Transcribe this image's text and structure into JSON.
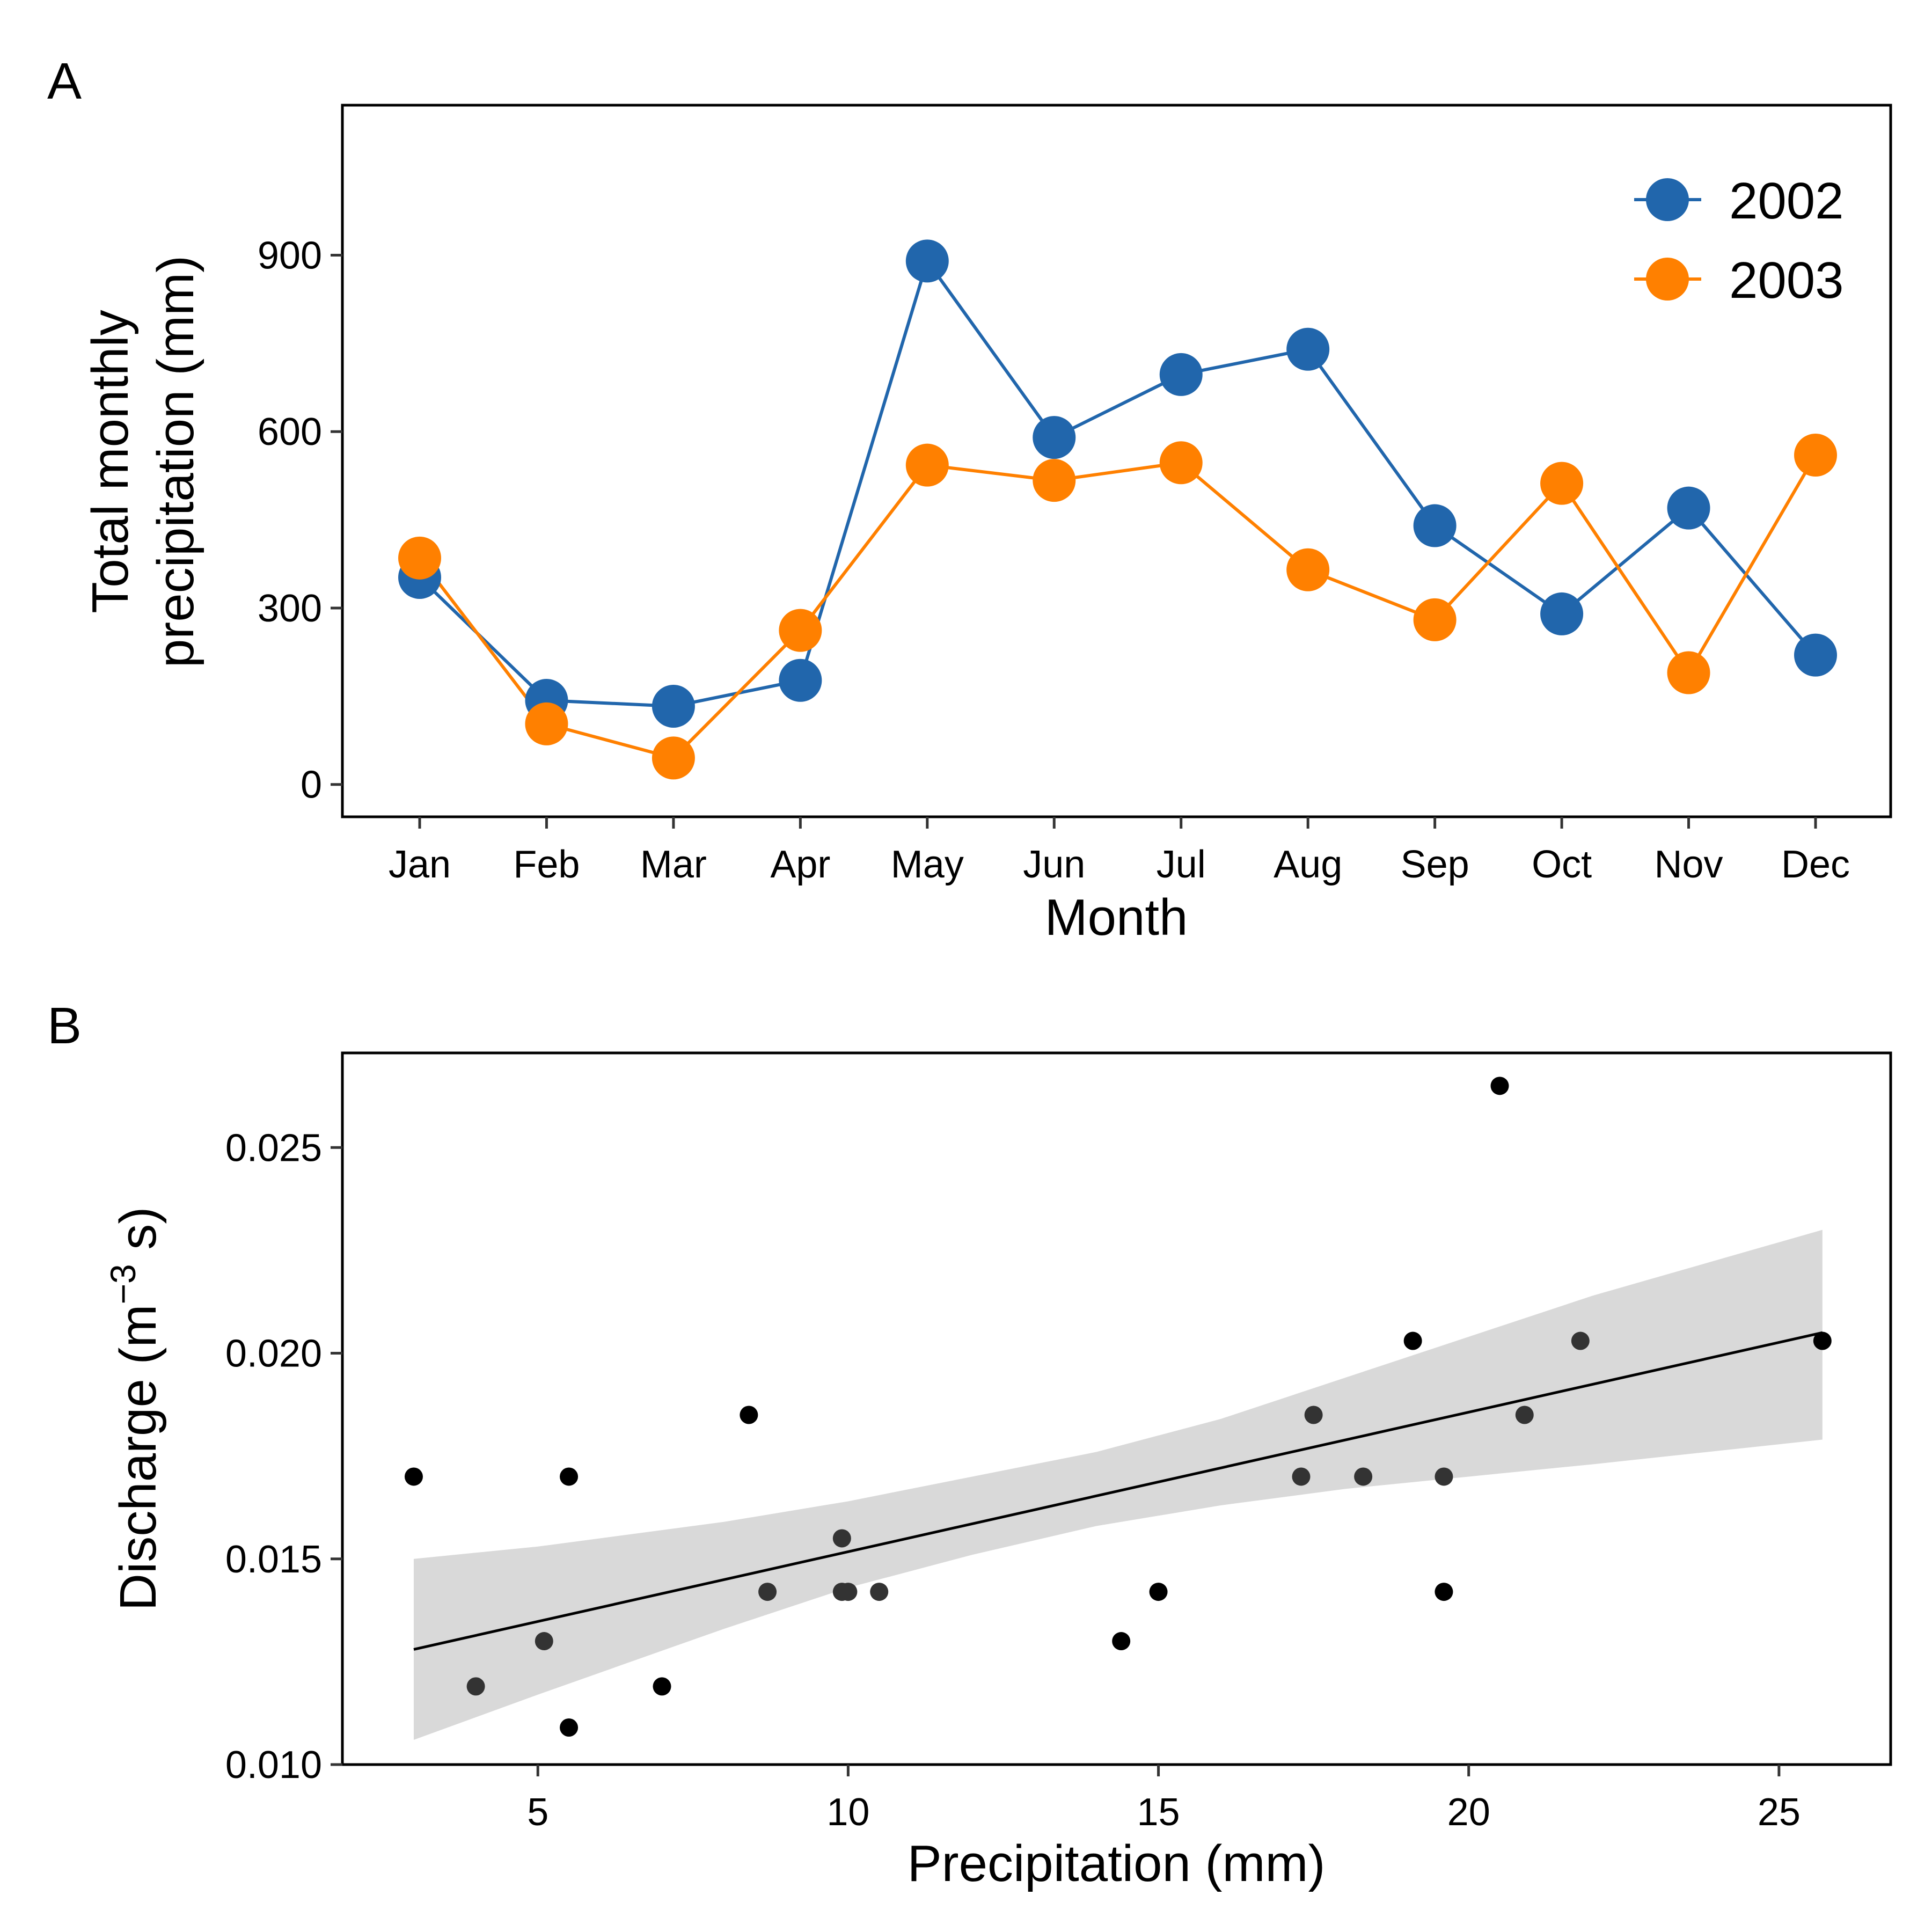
{
  "chart_data": [
    {
      "panel_label": "A",
      "type": "line",
      "categories": [
        "Jan",
        "Feb",
        "Mar",
        "Apr",
        "May",
        "Jun",
        "Jul",
        "Aug",
        "Sep",
        "Oct",
        "Nov",
        "Dec"
      ],
      "series": [
        {
          "name": "2002",
          "color": "#2166ac",
          "values": [
            352,
            143,
            133,
            177,
            890,
            590,
            697,
            740,
            440,
            290,
            470,
            220
          ]
        },
        {
          "name": "2003",
          "color": "#ff8000",
          "values": [
            385,
            103,
            45,
            262,
            543,
            517,
            547,
            365,
            280,
            512,
            190,
            560
          ]
        }
      ],
      "xlabel": "Month",
      "ylabel": [
        "Total monthly",
        "precipitation (mm)"
      ],
      "yticks": [
        0,
        300,
        600,
        900
      ],
      "ylim": [
        -55,
        1155
      ],
      "legend_position": "top-right",
      "grid": false
    },
    {
      "panel_label": "B",
      "type": "scatter",
      "points": [
        {
          "x": 3.0,
          "y": 0.017,
          "shade": "#000000"
        },
        {
          "x": 4.0,
          "y": 0.0119,
          "shade": "#333333"
        },
        {
          "x": 5.1,
          "y": 0.013,
          "shade": "#333333"
        },
        {
          "x": 5.5,
          "y": 0.017,
          "shade": "#000000"
        },
        {
          "x": 5.5,
          "y": 0.0109,
          "shade": "#000000"
        },
        {
          "x": 7.0,
          "y": 0.0119,
          "shade": "#000000"
        },
        {
          "x": 8.4,
          "y": 0.0185,
          "shade": "#000000"
        },
        {
          "x": 8.7,
          "y": 0.0142,
          "shade": "#333333"
        },
        {
          "x": 9.9,
          "y": 0.0155,
          "shade": "#333333"
        },
        {
          "x": 9.9,
          "y": 0.0142,
          "shade": "#333333"
        },
        {
          "x": 10.0,
          "y": 0.0142,
          "shade": "#333333"
        },
        {
          "x": 10.5,
          "y": 0.0142,
          "shade": "#333333"
        },
        {
          "x": 14.4,
          "y": 0.013,
          "shade": "#000000"
        },
        {
          "x": 15.0,
          "y": 0.0142,
          "shade": "#000000"
        },
        {
          "x": 17.3,
          "y": 0.017,
          "shade": "#333333"
        },
        {
          "x": 17.5,
          "y": 0.0185,
          "shade": "#333333"
        },
        {
          "x": 18.3,
          "y": 0.017,
          "shade": "#333333"
        },
        {
          "x": 19.1,
          "y": 0.0203,
          "shade": "#000000"
        },
        {
          "x": 19.6,
          "y": 0.017,
          "shade": "#333333"
        },
        {
          "x": 19.6,
          "y": 0.0142,
          "shade": "#000000"
        },
        {
          "x": 20.5,
          "y": 0.0265,
          "shade": "#000000"
        },
        {
          "x": 20.9,
          "y": 0.0185,
          "shade": "#333333"
        },
        {
          "x": 21.8,
          "y": 0.0203,
          "shade": "#333333"
        },
        {
          "x": 25.7,
          "y": 0.0203,
          "shade": "#000000"
        }
      ],
      "fit_line": {
        "x": [
          3.0,
          25.7
        ],
        "y": [
          0.0128,
          0.0205
        ],
        "color": "#000000"
      },
      "confidence_band": {
        "color": "#d9d9d9",
        "x": [
          3.0,
          5.0,
          8.0,
          10.0,
          12.0,
          14.0,
          16.0,
          18.0,
          20.0,
          22.0,
          25.7
        ],
        "upper": [
          0.015,
          0.0153,
          0.0159,
          0.0164,
          0.017,
          0.0176,
          0.0184,
          0.0194,
          0.0204,
          0.0214,
          0.023
        ],
        "lower": [
          0.0106,
          0.0117,
          0.0133,
          0.0143,
          0.0151,
          0.0158,
          0.0163,
          0.0167,
          0.017,
          0.0173,
          0.0179
        ]
      },
      "xlabel": "Precipitation (mm)",
      "ylabel": {
        "main": "Discharge (m",
        "superscript": "−3",
        "tail": " s)"
      },
      "xticks": [
        5,
        10,
        15,
        20,
        25
      ],
      "ytick_labels": [
        "0.010",
        "0.015",
        "0.020",
        "0.025"
      ],
      "yticks": [
        0.01,
        0.015,
        0.02,
        0.025
      ],
      "xlim": [
        1.85,
        26.8
      ],
      "ylim": [
        0.01,
        0.0273
      ],
      "grid": false
    }
  ]
}
